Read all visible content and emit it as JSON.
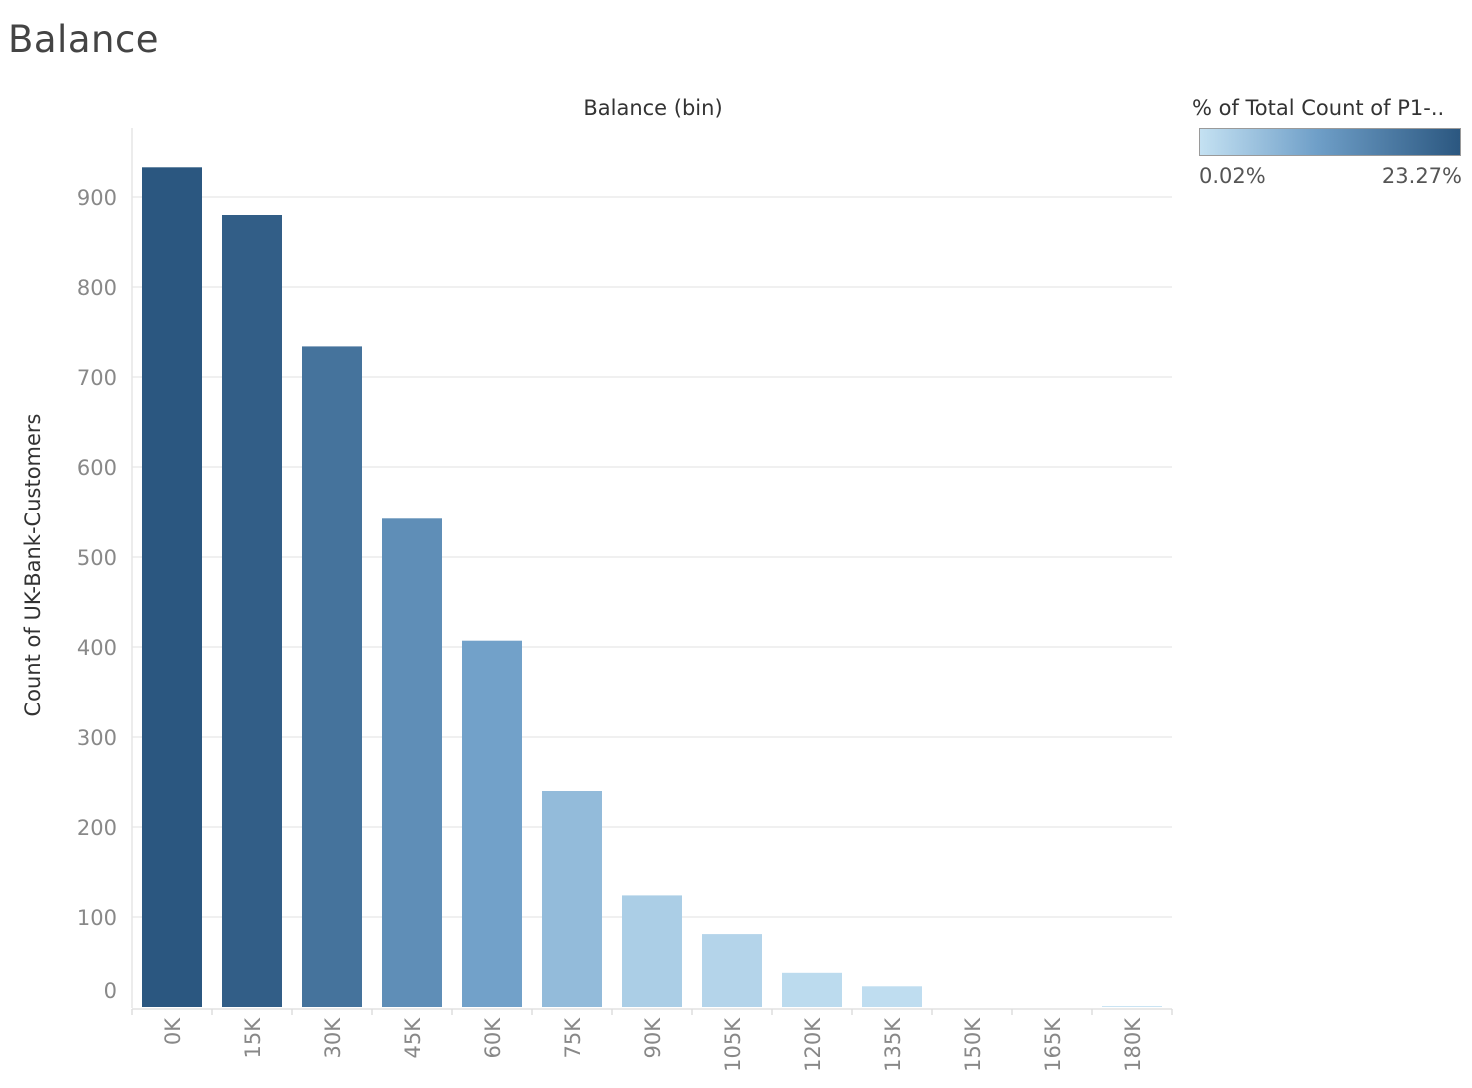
{
  "page": {
    "title": "Balance"
  },
  "legend": {
    "title": "% of Total Count of P1-..",
    "min_label": "0.02%",
    "max_label": "23.27%",
    "color_low": "#c4e1f2",
    "color_high": "#2b5780"
  },
  "chart_data": {
    "type": "bar",
    "title": "Balance (bin)",
    "xlabel": "",
    "ylabel": "Count of UK-Bank-Customers",
    "categories": [
      "0K",
      "15K",
      "30K",
      "45K",
      "60K",
      "75K",
      "90K",
      "105K",
      "120K",
      "135K",
      "150K",
      "165K",
      "180K"
    ],
    "values": [
      933,
      880,
      734,
      543,
      407,
      240,
      124,
      81,
      38,
      23,
      0,
      0,
      1
    ],
    "color_values_pct": [
      23.27,
      21.95,
      18.31,
      13.54,
      10.15,
      5.99,
      3.09,
      2.02,
      0.95,
      0.57,
      0,
      0,
      0.02
    ],
    "yticks": [
      0,
      100,
      200,
      300,
      400,
      500,
      600,
      700,
      800,
      900
    ],
    "ylim": [
      0,
      933
    ],
    "grid": true,
    "legend_position": "top-right"
  }
}
